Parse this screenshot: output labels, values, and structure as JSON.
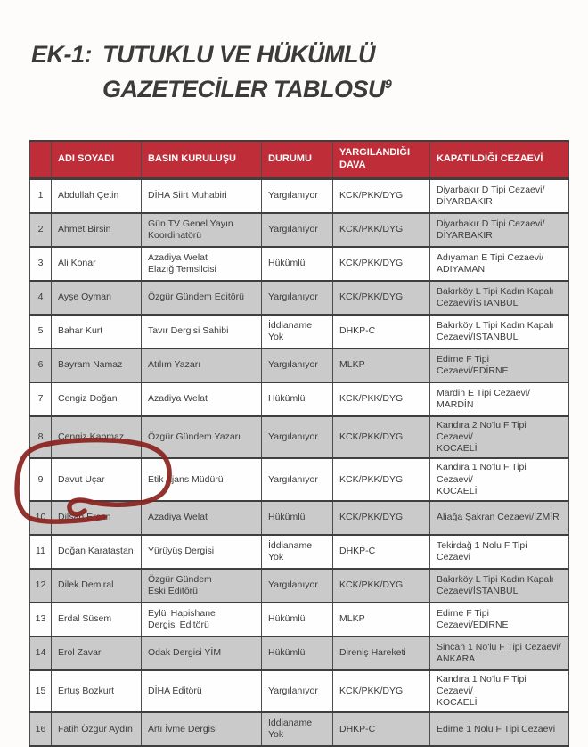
{
  "title": {
    "label": "EK-1:",
    "line1": "TUTUKLU VE HÜKÜMLÜ",
    "line2": "GAZETECİLER TABLOSU",
    "footnote": "9"
  },
  "table": {
    "headers": [
      "",
      "ADI SOYADI",
      "BASIN KURULUŞU",
      "DURUMU",
      "YARGILANDIĞI DAVA",
      "KAPATILDIĞI CEZAEVİ"
    ],
    "rows": [
      {
        "no": "1",
        "name": "Abdullah Çetin",
        "org": "DİHA Siirt Muhabiri",
        "status": "Yargılanıyor",
        "case": "KCK/PKK/DYG",
        "prison": "Diyarbakır D Tipi Cezaevi/\nDİYARBAKIR"
      },
      {
        "no": "2",
        "name": "Ahmet Birsin",
        "org": "Gün TV Genel Yayın\nKoordinatörü",
        "status": "Yargılanıyor",
        "case": "KCK/PKK/DYG",
        "prison": "Diyarbakır D Tipi Cezaevi/\nDİYARBAKIR"
      },
      {
        "no": "3",
        "name": "Ali Konar",
        "org": "Azadiya Welat\nElazığ Temsilcisi",
        "status": "Hükümlü",
        "case": "KCK/PKK/DYG",
        "prison": "Adıyaman E Tipi Cezaevi/\nADIYAMAN"
      },
      {
        "no": "4",
        "name": "Ayşe Oyman",
        "org": "Özgür Gündem Editörü",
        "status": "Yargılanıyor",
        "case": "KCK/PKK/DYG",
        "prison": "Bakırköy L Tipi Kadın Kapalı\nCezaevi/İSTANBUL"
      },
      {
        "no": "5",
        "name": "Bahar Kurt",
        "org": "Tavır Dergisi Sahibi",
        "status": "İddianame Yok",
        "case": "DHKP-C",
        "prison": "Bakırköy L Tipi Kadın Kapalı\nCezaevi/İSTANBUL"
      },
      {
        "no": "6",
        "name": "Bayram Namaz",
        "org": "Atılım Yazarı",
        "status": "Yargılanıyor",
        "case": "MLKP",
        "prison": "Edirne F Tipi Cezaevi/EDİRNE"
      },
      {
        "no": "7",
        "name": "Cengiz Doğan",
        "org": "Azadiya Welat",
        "status": "Hükümlü",
        "case": "KCK/PKK/DYG",
        "prison": "Mardin E Tipi Cezaevi/\nMARDİN"
      },
      {
        "no": "8",
        "name": "Cengiz Kapmaz",
        "org": "Özgür Gündem Yazarı",
        "status": "Yargılanıyor",
        "case": "KCK/PKK/DYG",
        "prison": "Kandıra 2 No'lu F Tipi Cezaevi/\nKOCAELİ"
      },
      {
        "no": "9",
        "name": "Davut Uçar",
        "org": "Etik Ajans Müdürü",
        "status": "Yargılanıyor",
        "case": "KCK/PKK/DYG",
        "prison": "Kandıra 1 No'lu F Tipi Cezaevi/\nKOCAELİ"
      },
      {
        "no": "10",
        "name": "Dilşah Ercan",
        "org": "Azadiya Welat",
        "status": "Hükümlü",
        "case": "KCK/PKK/DYG",
        "prison": "Aliağa Şakran Cezaevi/İZMİR"
      },
      {
        "no": "11",
        "name": "Doğan Karataştan",
        "org": "Yürüyüş Dergisi",
        "status": "İddianame Yok",
        "case": "DHKP-C",
        "prison": "Tekirdağ 1 Nolu F Tipi Cezaevi"
      },
      {
        "no": "12",
        "name": "Dilek Demiral",
        "org": "Özgür Gündem\nEski Editörü",
        "status": "Yargılanıyor",
        "case": "KCK/PKK/DYG",
        "prison": "Bakırköy L Tipi Kadın Kapalı\nCezaevi/İSTANBUL"
      },
      {
        "no": "13",
        "name": "Erdal Süsem",
        "org": "Eylül Hapishane\nDergisi Editörü",
        "status": "Hükümlü",
        "case": "MLKP",
        "prison": "Edirne F Tipi Cezaevi/EDİRNE"
      },
      {
        "no": "14",
        "name": "Erol Zavar",
        "org": "Odak Dergisi YİM",
        "status": "Hükümlü",
        "case": "Direniş Hareketi",
        "prison": "Sincan 1 No'lu F Tipi Cezaevi/\nANKARA"
      },
      {
        "no": "15",
        "name": "Ertuş Bozkurt",
        "org": "DİHA Editörü",
        "status": "Yargılanıyor",
        "case": "KCK/PKK/DYG",
        "prison": "Kandıra 1 No'lu F Tipi Cezaevi/\nKOCAELİ"
      },
      {
        "no": "16",
        "name": "Fatih Özgür Aydın",
        "org": "Artı İvme Dergisi",
        "status": "İddianame Yok",
        "case": "DHKP-C",
        "prison": "Edirne 1 Nolu F Tipi Cezaevi"
      }
    ]
  },
  "annotation": {
    "circled_row_no": "10",
    "circled_name": "Dilşah Ercan"
  },
  "colors": {
    "header_bg": "#bf2d38",
    "alt_row_bg": "#cacaca",
    "circle_stroke": "#8b2420",
    "title_text": "#3b3b3b"
  }
}
